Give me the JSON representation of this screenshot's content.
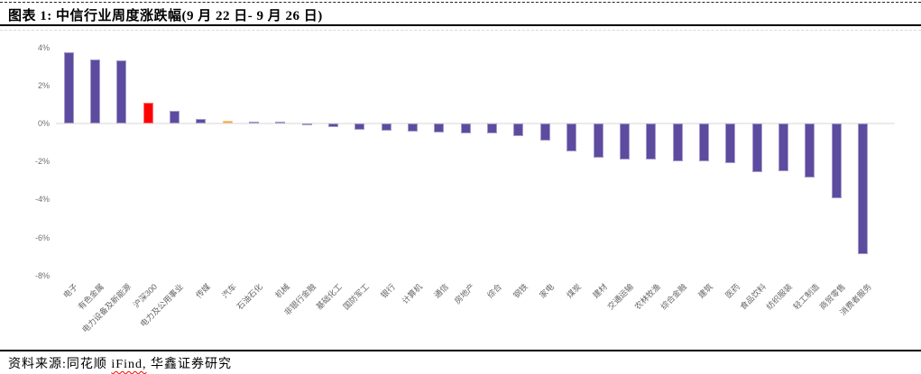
{
  "header": {
    "title": "图表 1: 中信行业周度涨跌幅(9 月 22 日- 9 月 26 日)"
  },
  "footer": {
    "prefix": "资料来源:同花顺 ",
    "underlined": "iFind,",
    "suffix": " 华鑫证券研究"
  },
  "colors": {
    "bar_default": "#5C4B9E",
    "bar_csi300": "#FF0000",
    "bar_auto": "#F2A13C",
    "zero_line": "#EBEBEB",
    "tick_text": "#6F6F6F"
  },
  "chart_data": {
    "type": "bar",
    "title": "中信行业周度涨跌幅(9月22日-9月26日)",
    "xlabel": "",
    "ylabel": "",
    "ylim": [
      -8,
      4
    ],
    "yticks": [
      "4%",
      "2%",
      "0%",
      "-2%",
      "-4%",
      "-6%",
      "-8%"
    ],
    "grid": false,
    "legend": "none",
    "categories": [
      "电子",
      "有色金属",
      "电力设备及新能源",
      "沪深300",
      "电力及公用事业",
      "传媒",
      "汽车",
      "石油石化",
      "机械",
      "非银行金融",
      "基础化工",
      "国防军工",
      "银行",
      "计算机",
      "通信",
      "房地产",
      "综合",
      "钢铁",
      "家电",
      "煤炭",
      "建材",
      "交通运输",
      "农林牧渔",
      "综合金融",
      "建筑",
      "医药",
      "食品饮料",
      "纺织服装",
      "轻工制造",
      "商贸零售",
      "消费者服务"
    ],
    "values": [
      3.75,
      3.35,
      3.3,
      1.1,
      0.65,
      0.25,
      0.13,
      0.1,
      0.1,
      -0.1,
      -0.2,
      -0.35,
      -0.38,
      -0.45,
      -0.47,
      -0.5,
      -0.52,
      -0.65,
      -0.9,
      -1.45,
      -1.8,
      -1.9,
      -1.9,
      -2.0,
      -2.0,
      -2.1,
      -2.55,
      -2.5,
      -2.85,
      -3.95,
      -6.85
    ],
    "bar_colors": [
      null,
      null,
      null,
      "#FF0000",
      null,
      null,
      "#F2A13C",
      null,
      null,
      null,
      null,
      null,
      null,
      null,
      null,
      null,
      null,
      null,
      null,
      null,
      null,
      null,
      null,
      null,
      null,
      null,
      null,
      null,
      null,
      null,
      null
    ]
  }
}
